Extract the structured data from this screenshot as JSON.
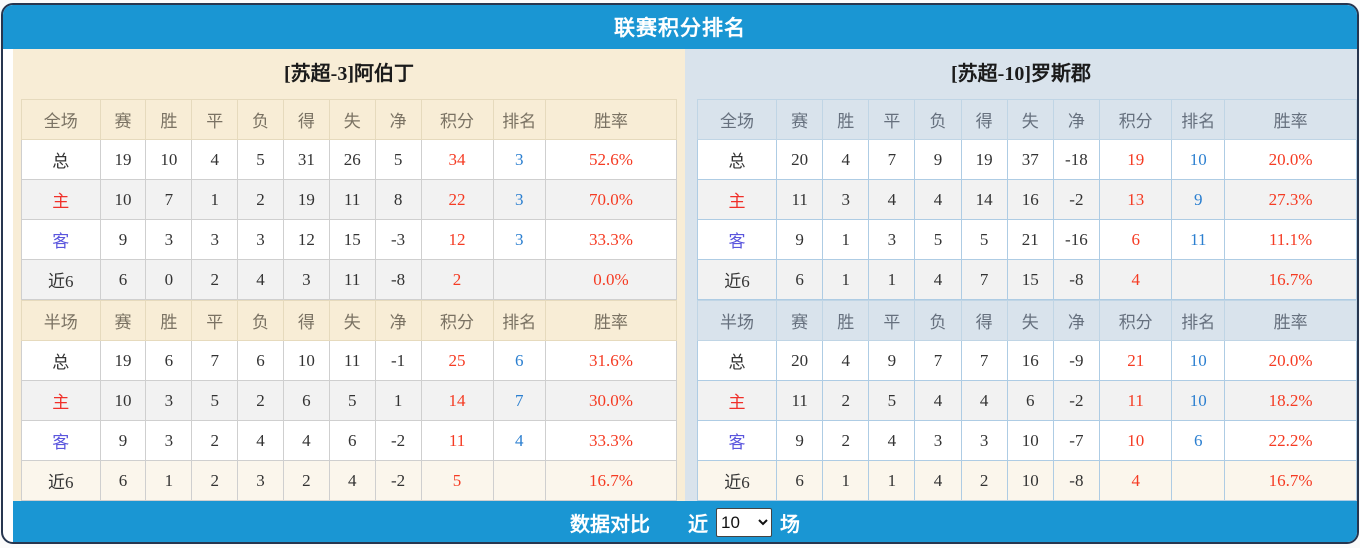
{
  "title": "联赛积分排名",
  "columns": [
    "赛",
    "胜",
    "平",
    "负",
    "得",
    "失",
    "净",
    "积分",
    "排名",
    "胜率"
  ],
  "teams": [
    {
      "name": "[苏超-3]阿伯丁",
      "sections": [
        {
          "label": "全场",
          "rows": [
            [
              "总",
              "19",
              "10",
              "4",
              "5",
              "31",
              "26",
              "5",
              "34",
              "3",
              "52.6%"
            ],
            [
              "主",
              "10",
              "7",
              "1",
              "2",
              "19",
              "11",
              "8",
              "22",
              "3",
              "70.0%"
            ],
            [
              "客",
              "9",
              "3",
              "3",
              "3",
              "12",
              "15",
              "-3",
              "12",
              "3",
              "33.3%"
            ],
            [
              "近6",
              "6",
              "0",
              "2",
              "4",
              "3",
              "11",
              "-8",
              "2",
              "",
              "0.0%"
            ]
          ]
        },
        {
          "label": "半场",
          "rows": [
            [
              "总",
              "19",
              "6",
              "7",
              "6",
              "10",
              "11",
              "-1",
              "25",
              "6",
              "31.6%"
            ],
            [
              "主",
              "10",
              "3",
              "5",
              "2",
              "6",
              "5",
              "1",
              "14",
              "7",
              "30.0%"
            ],
            [
              "客",
              "9",
              "3",
              "2",
              "4",
              "4",
              "6",
              "-2",
              "11",
              "4",
              "33.3%"
            ],
            [
              "近6",
              "6",
              "1",
              "2",
              "3",
              "2",
              "4",
              "-2",
              "5",
              "",
              "16.7%"
            ]
          ]
        }
      ]
    },
    {
      "name": "[苏超-10]罗斯郡",
      "sections": [
        {
          "label": "全场",
          "rows": [
            [
              "总",
              "20",
              "4",
              "7",
              "9",
              "19",
              "37",
              "-18",
              "19",
              "10",
              "20.0%"
            ],
            [
              "主",
              "11",
              "3",
              "4",
              "4",
              "14",
              "16",
              "-2",
              "13",
              "9",
              "27.3%"
            ],
            [
              "客",
              "9",
              "1",
              "3",
              "5",
              "5",
              "21",
              "-16",
              "6",
              "11",
              "11.1%"
            ],
            [
              "近6",
              "6",
              "1",
              "1",
              "4",
              "7",
              "15",
              "-8",
              "4",
              "",
              "16.7%"
            ]
          ]
        },
        {
          "label": "半场",
          "rows": [
            [
              "总",
              "20",
              "4",
              "9",
              "7",
              "7",
              "16",
              "-9",
              "21",
              "10",
              "20.0%"
            ],
            [
              "主",
              "11",
              "2",
              "5",
              "4",
              "4",
              "6",
              "-2",
              "11",
              "10",
              "18.2%"
            ],
            [
              "客",
              "9",
              "2",
              "4",
              "3",
              "3",
              "10",
              "-7",
              "10",
              "6",
              "22.2%"
            ],
            [
              "近6",
              "6",
              "1",
              "1",
              "4",
              "2",
              "10",
              "-8",
              "4",
              "",
              "16.7%"
            ]
          ]
        }
      ]
    }
  ],
  "footer": {
    "compare_label": "数据对比",
    "recent_label": "近",
    "recent_value": "10",
    "unit_label": "场"
  },
  "colors": {
    "accent_blue": "#1a96d3",
    "score_red": "#f53b23",
    "rank_blue": "#2b7fd0",
    "home_label_red": "#f0302a",
    "away_label_indigo": "#5a55dd",
    "left_panel_bg": "#f8edd6",
    "right_panel_bg": "#d9e3ec"
  }
}
